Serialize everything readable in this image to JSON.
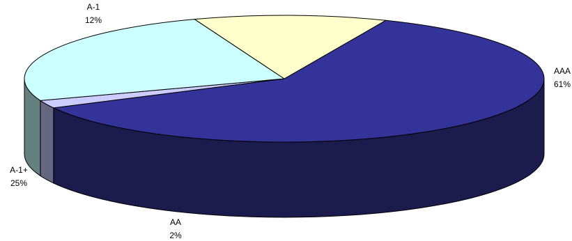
{
  "chart_data": {
    "type": "pie",
    "style": "3d",
    "slices": [
      {
        "label": "AAA",
        "pct_label": "61%",
        "value": 61,
        "color": "#333399",
        "side_color": "#1b1b4d"
      },
      {
        "label": "AA",
        "pct_label": "2%",
        "value": 2,
        "color": "#ccccff",
        "side_color": "#666680"
      },
      {
        "label": "A-1+",
        "pct_label": "25%",
        "value": 25,
        "color": "#ccffff",
        "side_color": "#668080"
      },
      {
        "label": "A-1",
        "pct_label": "12%",
        "value": 12,
        "color": "#ffffcc",
        "side_color": "#808066"
      }
    ],
    "outline_color": "#000000"
  }
}
